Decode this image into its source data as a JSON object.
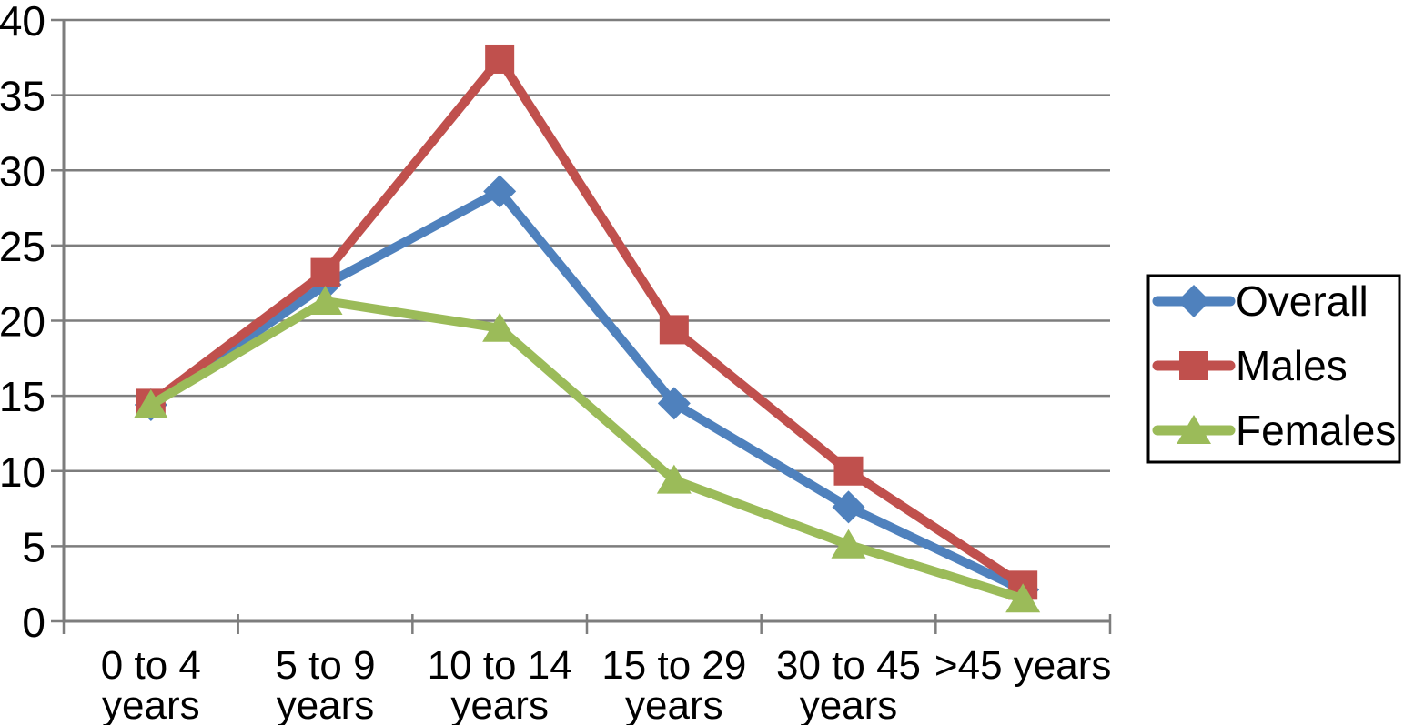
{
  "chart_data": {
    "type": "line",
    "title": "",
    "xlabel": "",
    "ylabel": "",
    "categories": [
      "0 to 4 years",
      "5 to 9 years",
      "10 to 14 years",
      "15 to 29 years",
      "30 to 45 years",
      ">45 years"
    ],
    "category_label_lines": [
      [
        "0 to 4",
        "years"
      ],
      [
        "5 to 9",
        "years"
      ],
      [
        "10 to 14",
        "years"
      ],
      [
        "15 to 29",
        "years"
      ],
      [
        "30 to 45",
        "years"
      ],
      [
        ">45 years"
      ]
    ],
    "series": [
      {
        "name": "Overall",
        "color": "#4F81BD",
        "marker": "diamond",
        "values": [
          14.4,
          22.4,
          28.6,
          14.5,
          7.6,
          2.1
        ]
      },
      {
        "name": "Males",
        "color": "#C0504D",
        "marker": "square",
        "values": [
          14.5,
          23.2,
          37.4,
          19.4,
          10.0,
          2.4
        ]
      },
      {
        "name": "Females",
        "color": "#9BBB59",
        "marker": "triangle",
        "values": [
          14.4,
          21.3,
          19.5,
          9.4,
          5.1,
          1.5
        ]
      }
    ],
    "ylim": [
      0,
      40
    ],
    "ytick_step": 5,
    "ytick_labels": [
      "0",
      "5",
      "10",
      "15",
      "20",
      "25",
      "30",
      "35",
      "40"
    ],
    "grid": "horizontal gridlines every 5, full-width",
    "legend": {
      "position": "right",
      "entries": [
        "Overall",
        "Males",
        "Females"
      ]
    }
  },
  "colors": {
    "background": "#ffffff",
    "gridline": "#7d7d7d",
    "axis": "#7d7d7d",
    "text": "#000000",
    "legend_border": "#000000",
    "legend_fill": "#ffffff"
  }
}
